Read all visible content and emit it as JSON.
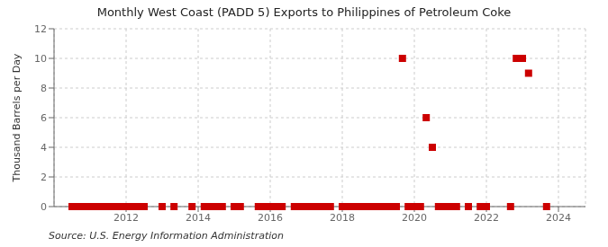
{
  "chart_data": {
    "type": "scatter",
    "title": "Monthly West Coast (PADD 5) Exports to Philippines of Petroleum Coke",
    "ylabel": "Thousand Barrels per Day",
    "annotation": "Source: U.S. Energy Information Administration",
    "color": "#cc0000",
    "marker": "square",
    "x": [
      2010.5,
      2010.67,
      2010.83,
      2011.0,
      2011.17,
      2011.33,
      2011.5,
      2011.67,
      2011.83,
      2012.0,
      2012.17,
      2012.33,
      2012.5,
      2013.0,
      2013.33,
      2013.83,
      2014.17,
      2014.33,
      2014.5,
      2014.67,
      2015.0,
      2015.17,
      2015.67,
      2015.83,
      2016.0,
      2016.17,
      2016.33,
      2016.67,
      2016.83,
      2017.0,
      2017.17,
      2017.33,
      2017.5,
      2017.67,
      2018.0,
      2018.17,
      2018.33,
      2018.5,
      2018.67,
      2018.83,
      2019.0,
      2019.17,
      2019.33,
      2019.5,
      2019.67,
      2019.83,
      2020.0,
      2020.17,
      2020.33,
      2020.5,
      2020.67,
      2020.83,
      2021.0,
      2021.17,
      2021.5,
      2021.83,
      2022.0,
      2022.67,
      2022.83,
      2023.0,
      2023.17,
      2023.67
    ],
    "values": [
      0,
      0,
      0,
      0,
      0,
      0,
      0,
      0,
      0,
      0,
      0,
      0,
      0,
      0,
      0,
      0,
      0,
      0,
      0,
      0,
      0,
      0,
      0,
      0,
      0,
      0,
      0,
      0,
      0,
      0,
      0,
      0,
      0,
      0,
      0,
      0,
      0,
      0,
      0,
      0,
      0,
      0,
      0,
      0,
      10,
      0,
      0,
      0,
      6,
      4,
      0,
      0,
      0,
      0,
      0,
      0,
      0,
      0,
      10,
      10,
      9,
      0
    ],
    "xlim": [
      2010.0,
      2024.75
    ],
    "ylim": [
      0,
      12
    ],
    "xticks": [
      2012,
      2014,
      2016,
      2018,
      2020,
      2022,
      2024
    ],
    "yticks": [
      0,
      2,
      4,
      6,
      8,
      10,
      12
    ],
    "grid": true
  }
}
